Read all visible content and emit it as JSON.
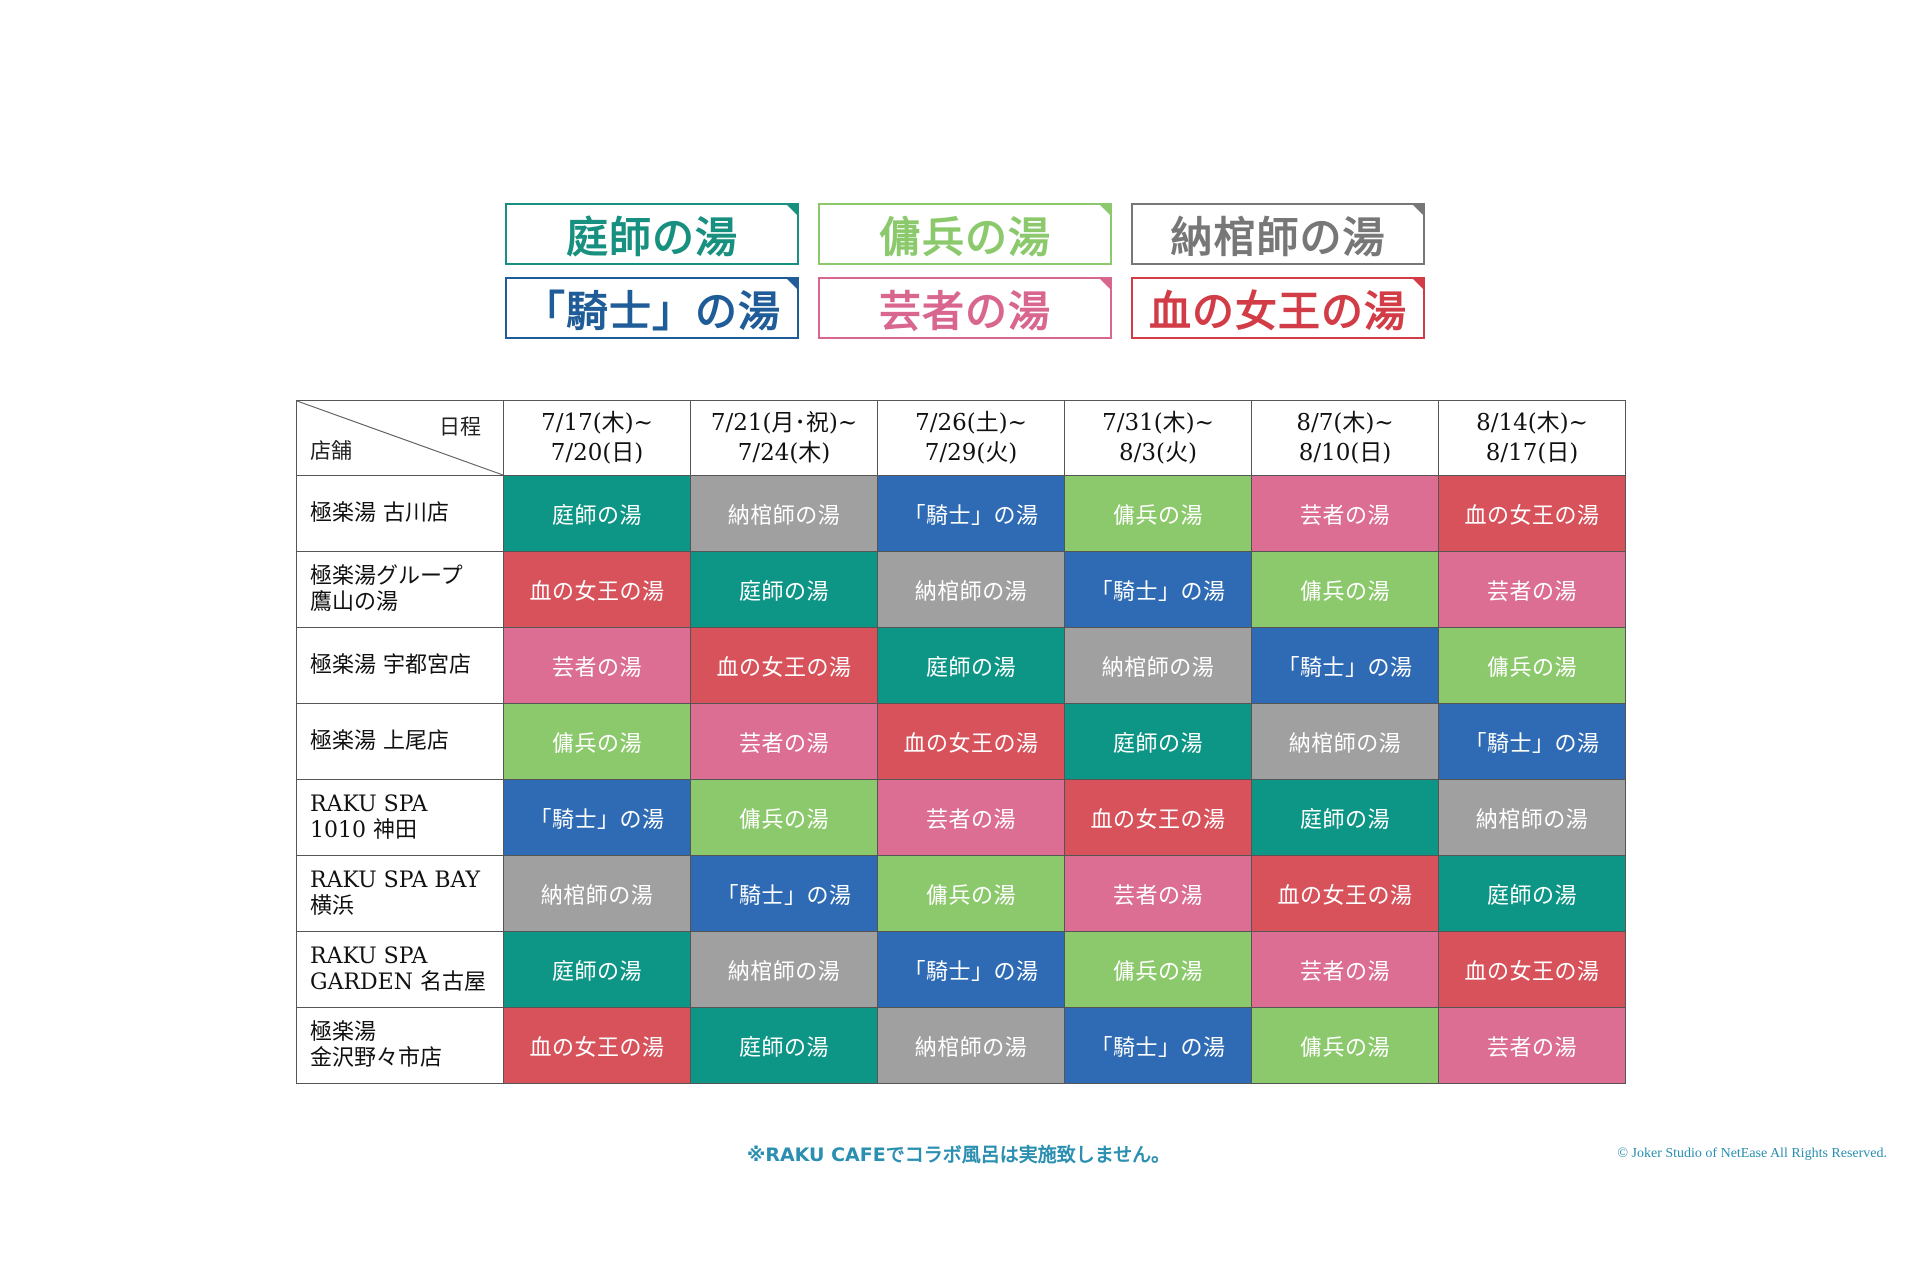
{
  "colors": {
    "niwashi": "#0d9585",
    "youhei": "#8cc96c",
    "nouganshi": "#a0a0a0",
    "kishi": "#2e6bb4",
    "geisha": "#dc6d93",
    "chinojoou": "#d7525a"
  },
  "legend": [
    {
      "key": "niwashi",
      "label": "庭師の湯",
      "color": "#179080"
    },
    {
      "key": "youhei",
      "label": "傭兵の湯",
      "color": "#8cc96c"
    },
    {
      "key": "nouganshi",
      "label": "納棺師の湯",
      "color": "#777777"
    },
    {
      "key": "kishi",
      "label": "「騎士」の湯",
      "color": "#1f5c98"
    },
    {
      "key": "geisha",
      "label": "芸者の湯",
      "color": "#d8668f"
    },
    {
      "key": "chinojoou",
      "label": "血の女王の湯",
      "color": "#d13c47"
    }
  ],
  "table": {
    "corner_top": "日程",
    "corner_bottom": "店舗",
    "periods": [
      {
        "line1": "7/17(木)~",
        "line2": "7/20(日)"
      },
      {
        "line1": "7/21(月･祝)~",
        "line2": "7/24(木)"
      },
      {
        "line1": "7/26(土)~",
        "line2": "7/29(火)"
      },
      {
        "line1": "7/31(木)~",
        "line2": "8/3(火)"
      },
      {
        "line1": "8/7(木)~",
        "line2": "8/10(日)"
      },
      {
        "line1": "8/14(木)~",
        "line2": "8/17(日)"
      }
    ],
    "rows": [
      {
        "store_line1": "極楽湯 古川店",
        "store_line2": "",
        "cells": [
          "niwashi",
          "nouganshi",
          "kishi",
          "youhei",
          "geisha",
          "chinojoou"
        ]
      },
      {
        "store_line1": "極楽湯グループ",
        "store_line2": "鷹山の湯",
        "cells": [
          "chinojoou",
          "niwashi",
          "nouganshi",
          "kishi",
          "youhei",
          "geisha"
        ]
      },
      {
        "store_line1": "極楽湯 宇都宮店",
        "store_line2": "",
        "cells": [
          "geisha",
          "chinojoou",
          "niwashi",
          "nouganshi",
          "kishi",
          "youhei"
        ]
      },
      {
        "store_line1": "極楽湯 上尾店",
        "store_line2": "",
        "cells": [
          "youhei",
          "geisha",
          "chinojoou",
          "niwashi",
          "nouganshi",
          "kishi"
        ]
      },
      {
        "store_line1": "RAKU SPA",
        "store_line2": "1010 神田",
        "cells": [
          "kishi",
          "youhei",
          "geisha",
          "chinojoou",
          "niwashi",
          "nouganshi"
        ]
      },
      {
        "store_line1": "RAKU SPA BAY",
        "store_line2": "横浜",
        "cells": [
          "nouganshi",
          "kishi",
          "youhei",
          "geisha",
          "chinojoou",
          "niwashi"
        ]
      },
      {
        "store_line1": "RAKU SPA",
        "store_line2": "GARDEN 名古屋",
        "cells": [
          "niwashi",
          "nouganshi",
          "kishi",
          "youhei",
          "geisha",
          "chinojoou"
        ]
      },
      {
        "store_line1": "極楽湯",
        "store_line2": "金沢野々市店",
        "cells": [
          "chinojoou",
          "niwashi",
          "nouganshi",
          "kishi",
          "youhei",
          "geisha"
        ]
      }
    ]
  },
  "note": "※RAKU CAFEでコラボ風呂は実施致しません。",
  "copyright": "© Joker Studio of NetEase All Rights Reserved."
}
